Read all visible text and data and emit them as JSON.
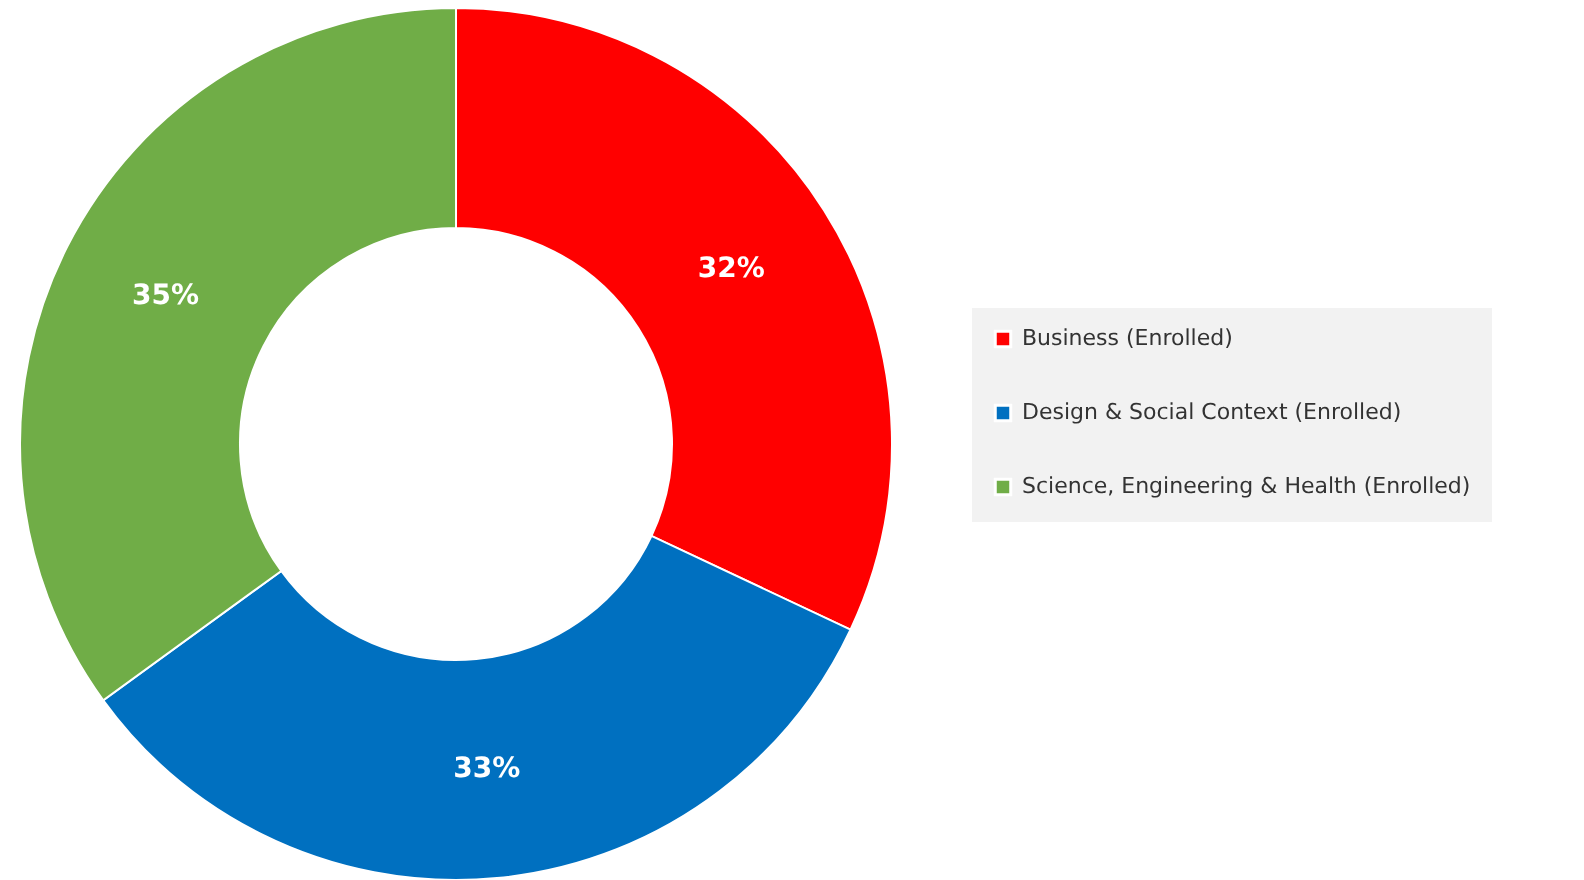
{
  "chart_data": {
    "type": "donut",
    "categories": [
      "Business (Enrolled)",
      "Design & Social Context (Enrolled)",
      "Science, Engineering & Health (Enrolled)"
    ],
    "values": [
      32,
      33,
      35
    ],
    "colors": [
      "#ff0000",
      "#0070c0",
      "#70ad47"
    ],
    "value_labels": [
      "32%",
      "33%",
      "35%"
    ],
    "legend": "right"
  }
}
